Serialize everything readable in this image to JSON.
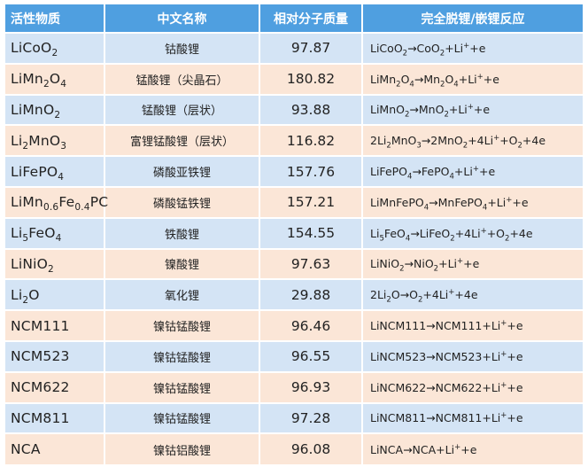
{
  "headers": [
    "活性物质",
    "中文名称",
    "相对分子质量",
    "完全脱锂/嵌锂反应"
  ],
  "colors": {
    "header_bg": "#4f9fe0",
    "row_blue": "#d4e4f5",
    "row_peach": "#fbe6d7"
  },
  "rows": [
    {
      "material": "LiCoO<sub>2</sub>",
      "name": "钴酸锂",
      "mw": "97.87",
      "reaction": "LiCoO<sub>2</sub>→CoO<sub>2</sub>+Li<sup>+</sup>+e"
    },
    {
      "material": "LiMn<sub>2</sub>O<sub>4</sub>",
      "name": "锰酸锂（尖晶石）",
      "mw": "180.82",
      "reaction": "LiMn<sub>2</sub>O<sub>4</sub>→Mn<sub>2</sub>O<sub>4</sub>+Li<sup>+</sup>+e"
    },
    {
      "material": "LiMnO<sub>2</sub>",
      "name": "锰酸锂（层状）",
      "mw": "93.88",
      "reaction": "LiMnO<sub>2</sub>→MnO<sub>2</sub>+Li<sup>+</sup>+e"
    },
    {
      "material": "Li<sub>2</sub>MnO<sub>3</sub>",
      "name": "富锂锰酸锂（层状）",
      "mw": "116.82",
      "reaction": "2Li<sub>2</sub>MnO<sub>3</sub>→2MnO<sub>2</sub>+4Li<sup>+</sup>+O<sub>2</sub>+4e"
    },
    {
      "material": "LiFePO<sub>4</sub>",
      "name": "磷酸亚铁锂",
      "mw": "157.76",
      "reaction": "LiFePO<sub>4</sub>→FePO<sub>4</sub>+Li<sup>+</sup>+e"
    },
    {
      "material": "LiMn<sub>0.6</sub>Fe<sub>0.4</sub>PC",
      "name": "磷酸锰铁锂",
      "mw": "157.21",
      "reaction": "LiMnFePO<sub>4</sub>→MnFePO<sub>4</sub>+Li<sup>+</sup>+e"
    },
    {
      "material": "Li<sub>5</sub>FeO<sub>4</sub>",
      "name": "铁酸锂",
      "mw": "154.55",
      "reaction": "Li<sub>5</sub>FeO<sub>4</sub>→LiFeO<sub>2</sub>+4Li<sup>+</sup>+O<sub>2</sub>+4e"
    },
    {
      "material": "LiNiO<sub>2</sub>",
      "name": "镍酸锂",
      "mw": "97.63",
      "reaction": "LiNiO<sub>2</sub>→NiO<sub>2</sub>+Li<sup>+</sup>+e"
    },
    {
      "material": "Li<sub>2</sub>O",
      "name": "氧化锂",
      "mw": "29.88",
      "reaction": "2Li<sub>2</sub>O→O<sub>2</sub>+4Li<sup>+</sup>+4e"
    },
    {
      "material": "NCM111",
      "name": "镍钴锰酸锂",
      "mw": "96.46",
      "reaction": "LiNCM111→NCM111+Li<sup>+</sup>+e"
    },
    {
      "material": "NCM523",
      "name": "镍钴锰酸锂",
      "mw": "96.55",
      "reaction": "LiNCM523→NCM523+Li<sup>+</sup>+e"
    },
    {
      "material": "NCM622",
      "name": "镍钴锰酸锂",
      "mw": "96.93",
      "reaction": "LiNCM622→NCM622+Li<sup>+</sup>+e"
    },
    {
      "material": "NCM811",
      "name": "镍钴锰酸锂",
      "mw": "97.28",
      "reaction": "LiNCM811→NCM811+Li<sup>+</sup>+e"
    },
    {
      "material": "NCA",
      "name": "镍钴铝酸锂",
      "mw": "96.08",
      "reaction": "LiNCA→NCA+Li<sup>+</sup>+e"
    }
  ]
}
